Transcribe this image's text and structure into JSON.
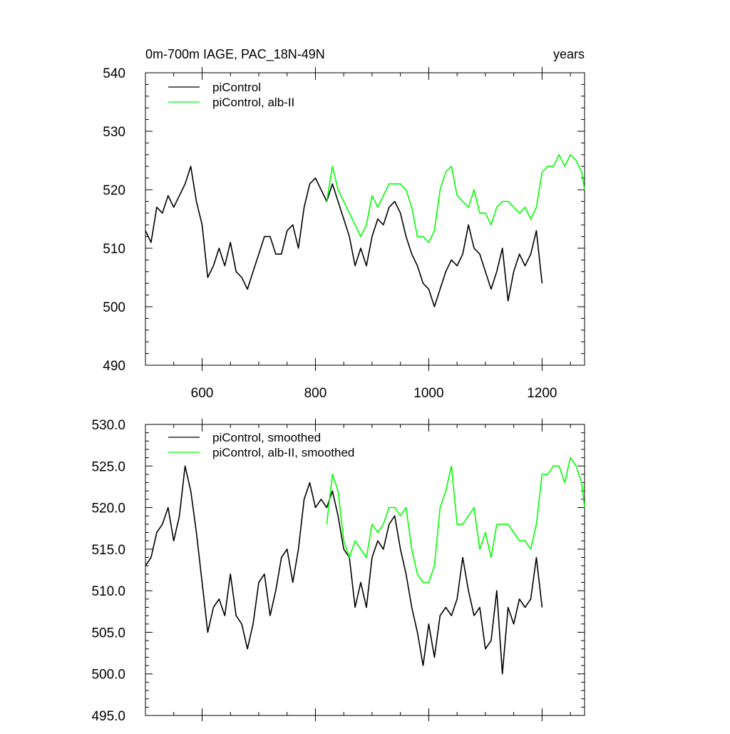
{
  "chart_data": [
    {
      "type": "line",
      "title_left": "0m-700m IAGE, PAC_18N-49N",
      "title_right": "years",
      "xlim": [
        500,
        1275
      ],
      "ylim": [
        490,
        540
      ],
      "x_ticks": [
        600,
        800,
        1000,
        1200
      ],
      "x_tick_labels": [
        "600",
        "800",
        "1000",
        "1200"
      ],
      "y_ticks": [
        490,
        500,
        510,
        520,
        530,
        540
      ],
      "y_tick_labels": [
        "490",
        "500",
        "510",
        "520",
        "530",
        "540"
      ],
      "legend_position": "top-left",
      "series": [
        {
          "name": "piControl",
          "color": "#000000",
          "x": [
            500,
            510,
            520,
            530,
            540,
            550,
            560,
            570,
            580,
            590,
            600,
            610,
            620,
            630,
            640,
            650,
            660,
            670,
            680,
            690,
            700,
            710,
            720,
            730,
            740,
            750,
            760,
            770,
            780,
            790,
            800,
            810,
            820,
            830,
            840,
            850,
            860,
            870,
            880,
            890,
            900,
            910,
            920,
            930,
            940,
            950,
            960,
            970,
            980,
            990,
            1000,
            1010,
            1020,
            1030,
            1040,
            1050,
            1060,
            1070,
            1080,
            1090,
            1100,
            1110,
            1120,
            1130,
            1140,
            1150,
            1160,
            1170,
            1180,
            1190,
            1200
          ],
          "values": [
            513,
            511,
            517,
            516,
            519,
            517,
            519,
            521,
            524,
            518,
            514,
            505,
            507,
            510,
            507,
            511,
            506,
            505,
            503,
            506,
            509,
            512,
            512,
            509,
            509,
            513,
            514,
            510,
            517,
            521,
            522,
            520,
            518,
            521,
            518,
            515,
            512,
            507,
            510,
            507,
            512,
            515,
            514,
            517,
            518,
            516,
            512,
            509,
            507,
            504,
            503,
            500,
            503,
            506,
            508,
            507,
            509,
            514,
            510,
            509,
            506,
            503,
            506,
            510,
            501,
            506,
            509,
            507,
            509,
            513,
            504
          ]
        },
        {
          "name": "piControl, alb-II",
          "color": "#00ff00",
          "x": [
            820,
            830,
            840,
            850,
            860,
            870,
            880,
            890,
            900,
            910,
            920,
            930,
            940,
            950,
            960,
            970,
            980,
            990,
            1000,
            1010,
            1020,
            1030,
            1040,
            1050,
            1060,
            1070,
            1080,
            1090,
            1100,
            1110,
            1120,
            1130,
            1140,
            1150,
            1160,
            1170,
            1180,
            1190,
            1200,
            1210,
            1220,
            1230,
            1240,
            1250,
            1260,
            1270,
            1275
          ],
          "values": [
            518,
            524,
            520,
            518,
            516,
            514,
            512,
            514,
            519,
            517,
            519,
            521,
            521,
            521,
            520,
            517,
            512,
            512,
            511,
            513,
            520,
            523,
            524,
            519,
            518,
            517,
            520,
            516,
            516,
            514,
            517,
            518,
            518,
            517,
            516,
            517,
            515,
            517,
            523,
            524,
            524,
            526,
            524,
            526,
            525,
            523,
            520
          ]
        }
      ]
    },
    {
      "type": "line",
      "xlim": [
        500,
        1275
      ],
      "ylim": [
        495,
        530
      ],
      "x_ticks": [
        600,
        800,
        1000,
        1200
      ],
      "y_ticks": [
        495,
        500,
        505,
        510,
        515,
        520,
        525,
        530
      ],
      "y_tick_labels": [
        "495.0",
        "500.0",
        "505.0",
        "510.0",
        "515.0",
        "520.0",
        "525.0",
        "530.0"
      ],
      "legend_position": "top-left",
      "series": [
        {
          "name": "piControl, smoothed",
          "color": "#000000",
          "x": [
            500,
            510,
            520,
            530,
            540,
            550,
            560,
            570,
            580,
            590,
            600,
            610,
            620,
            630,
            640,
            650,
            660,
            670,
            680,
            690,
            700,
            710,
            720,
            730,
            740,
            750,
            760,
            770,
            780,
            790,
            800,
            810,
            820,
            830,
            840,
            850,
            860,
            870,
            880,
            890,
            900,
            910,
            920,
            930,
            940,
            950,
            960,
            970,
            980,
            990,
            1000,
            1010,
            1020,
            1030,
            1040,
            1050,
            1060,
            1070,
            1080,
            1090,
            1100,
            1110,
            1120,
            1130,
            1140,
            1150,
            1160,
            1170,
            1180,
            1190,
            1200
          ],
          "values": [
            513,
            514,
            517,
            518,
            520,
            516,
            519,
            525,
            522,
            517,
            511,
            505,
            508,
            509,
            507,
            512,
            507,
            506,
            503,
            506,
            511,
            512,
            507,
            510,
            514,
            515,
            511,
            515,
            521,
            523,
            520,
            521,
            520,
            522,
            519,
            515,
            514,
            508,
            511,
            508,
            514,
            516,
            515,
            518,
            519,
            515,
            512,
            508,
            505,
            501,
            506,
            502,
            507,
            508,
            507,
            509,
            514,
            510,
            507,
            508,
            503,
            504,
            510,
            500,
            508,
            506,
            509,
            508,
            509,
            514,
            508
          ]
        },
        {
          "name": "piControl, alb-II, smoothed",
          "color": "#00ff00",
          "x": [
            820,
            830,
            840,
            850,
            860,
            870,
            880,
            890,
            900,
            910,
            920,
            930,
            940,
            950,
            960,
            970,
            980,
            990,
            1000,
            1010,
            1020,
            1030,
            1040,
            1050,
            1060,
            1070,
            1080,
            1090,
            1100,
            1110,
            1120,
            1130,
            1140,
            1150,
            1160,
            1170,
            1180,
            1190,
            1200,
            1210,
            1220,
            1230,
            1240,
            1250,
            1260,
            1270,
            1275
          ],
          "values": [
            518,
            524,
            522,
            516,
            514,
            516,
            515,
            514,
            518,
            517,
            518,
            520,
            520,
            519,
            520,
            515,
            512,
            511,
            511,
            513,
            520,
            522,
            525,
            518,
            518,
            519,
            520,
            515,
            517,
            514,
            518,
            518,
            518,
            517,
            516,
            516,
            515,
            518,
            524,
            524,
            525,
            525,
            523,
            526,
            525,
            523,
            520
          ]
        }
      ]
    }
  ]
}
